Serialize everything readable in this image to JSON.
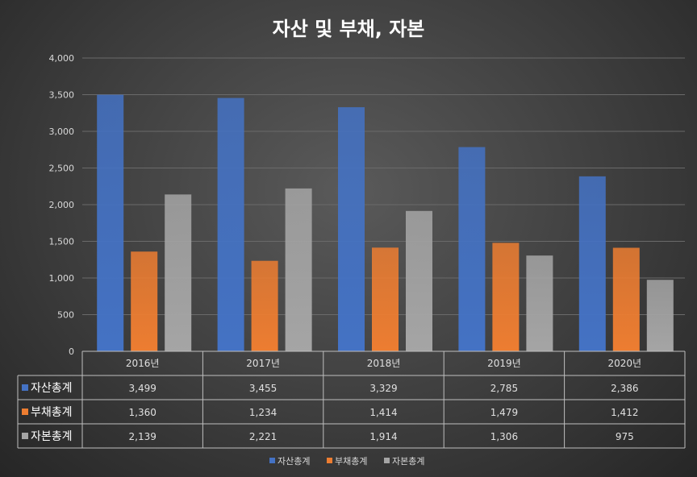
{
  "chart_data": {
    "type": "bar",
    "title": "자산 및 부채, 자본",
    "categories": [
      "2016년",
      "2017년",
      "2018년",
      "2019년",
      "2020년"
    ],
    "series": [
      {
        "name": "자산총계",
        "values": [
          3499,
          3455,
          3329,
          2785,
          2386
        ],
        "labels": [
          "3,499",
          "3,455",
          "3,329",
          "2,785",
          "2,386"
        ],
        "color": "#4472c4"
      },
      {
        "name": "부채총계",
        "values": [
          1360,
          1234,
          1414,
          1479,
          1412
        ],
        "labels": [
          "1,360",
          "1,234",
          "1,414",
          "1,479",
          "1,412"
        ],
        "color": "#ed7d31"
      },
      {
        "name": "자본총계",
        "values": [
          2139,
          2221,
          1914,
          1306,
          975
        ],
        "labels": [
          "2,139",
          "2,221",
          "1,914",
          "1,306",
          "975"
        ],
        "color": "#a5a5a5"
      }
    ],
    "ylim": [
      0,
      4000
    ],
    "yticks": [
      "0",
      "500",
      "1,000",
      "1,500",
      "2,000",
      "2,500",
      "3,000",
      "3,500",
      "4,000"
    ],
    "grid": true,
    "data_table": true,
    "legend": "bottom"
  }
}
